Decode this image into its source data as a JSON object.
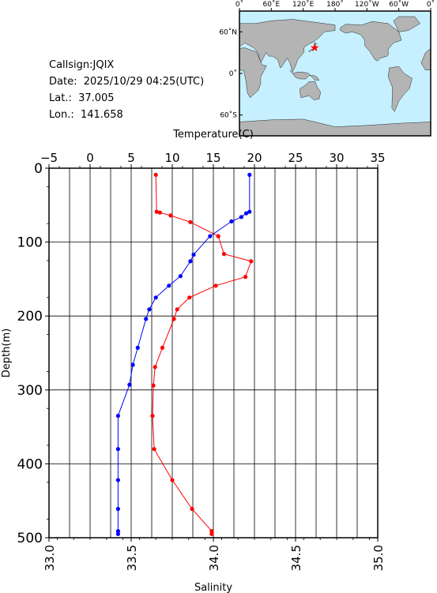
{
  "station": {
    "callsign": "Callsign:JQIX",
    "date": "Date:  2025/10/29 04:25(UTC)",
    "lat": "Lat.:  37.005",
    "lon": "Lon.:  141.658"
  },
  "map": {
    "top_labels": [
      "0˚",
      "60˚E",
      "120˚E",
      "180˚",
      "120˚W",
      "60˚W",
      "0˚"
    ],
    "lat_labels": [
      "60˚N",
      "0˚",
      "60˚S"
    ],
    "ocean_color": "#c6f0ff",
    "land_color": "#b4b4b4",
    "marker_color": "#ff0000",
    "marker": "star-icon"
  },
  "chart_data": {
    "type": "line",
    "ylabel": "Depth(m)",
    "top_axis_label": "Temperature(C)",
    "bottom_axis_label": "Salinity",
    "ylim": [
      500,
      0
    ],
    "temperature_lim": [
      -5,
      35
    ],
    "salinity_lim": [
      33.0,
      35.0
    ],
    "y_ticks": [
      "0",
      "100",
      "200",
      "300",
      "400",
      "500"
    ],
    "temperature_ticks": [
      "−5",
      "0",
      "5",
      "10",
      "15",
      "20",
      "25",
      "30",
      "35"
    ],
    "salinity_ticks": [
      "33.0",
      "33.5",
      "34.0",
      "34.5",
      "35.0"
    ],
    "grid": true,
    "series": [
      {
        "axis": "temperature",
        "color": "#ff0000",
        "points": [
          [
            8.0,
            9
          ],
          [
            8.1,
            59
          ],
          [
            8.5,
            60
          ],
          [
            9.8,
            64
          ],
          [
            12.2,
            73
          ],
          [
            15.6,
            92
          ],
          [
            16.3,
            116
          ],
          [
            19.6,
            126
          ],
          [
            18.9,
            147
          ],
          [
            15.3,
            159
          ],
          [
            12.1,
            175
          ],
          [
            10.6,
            191
          ],
          [
            10.2,
            204
          ],
          [
            8.8,
            243
          ],
          [
            7.9,
            269
          ],
          [
            7.7,
            294
          ],
          [
            7.6,
            335
          ],
          [
            7.8,
            380
          ],
          [
            10.0,
            422
          ],
          [
            12.4,
            461
          ],
          [
            14.8,
            491
          ],
          [
            14.8,
            495
          ]
        ]
      },
      {
        "axis": "salinity",
        "color": "#0000ff",
        "points": [
          [
            34.22,
            9
          ],
          [
            34.22,
            59
          ],
          [
            34.2,
            61
          ],
          [
            34.17,
            66
          ],
          [
            34.11,
            72
          ],
          [
            33.98,
            92
          ],
          [
            33.88,
            117
          ],
          [
            33.86,
            126
          ],
          [
            33.8,
            146
          ],
          [
            33.73,
            159
          ],
          [
            33.65,
            175
          ],
          [
            33.61,
            191
          ],
          [
            33.59,
            204
          ],
          [
            33.54,
            243
          ],
          [
            33.51,
            266
          ],
          [
            33.49,
            293
          ],
          [
            33.42,
            335
          ],
          [
            33.42,
            380
          ],
          [
            33.42,
            422
          ],
          [
            33.42,
            461
          ],
          [
            33.42,
            491
          ],
          [
            33.42,
            495
          ]
        ]
      }
    ]
  }
}
